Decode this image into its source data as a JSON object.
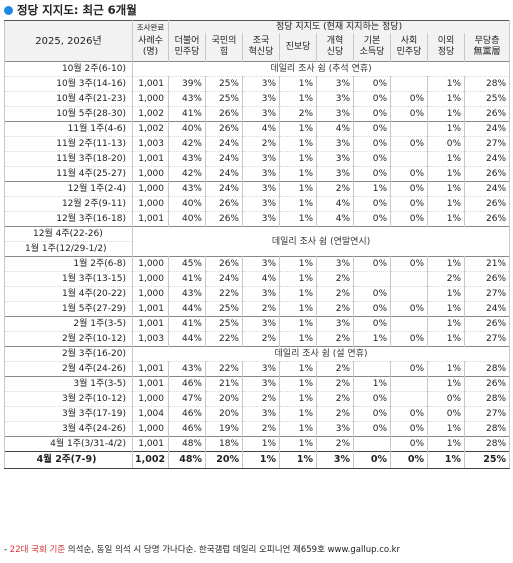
{
  "title": "정당 지지도: 최근 6개월",
  "accent": "#1e88e5",
  "header": {
    "period_label": "2025, 2026년",
    "survey_done": "조사완료",
    "sample_label": "사례수\n(명)",
    "party_group": "정당 지지도 (현재 지지하는 정당)",
    "parties": [
      "더불어\n민주당",
      "국민의\n힘",
      "조국\n혁신당",
      "진보당",
      "개혁\n신당",
      "기본\n소득당",
      "사회\n민주당",
      "이외\n정당",
      "무당층\n無黨層"
    ]
  },
  "rows": [
    {
      "kind": "note",
      "label": "10월 2주(6-10)",
      "note": "데일리 조사 쉼 (추석 연휴)"
    },
    {
      "label": "10월 3주(14-16)",
      "n": "1,001",
      "v": [
        "39%",
        "25%",
        "3%",
        "1%",
        "3%",
        "0%",
        "",
        "1%",
        "28%"
      ]
    },
    {
      "label": "10월 4주(21-23)",
      "n": "1,000",
      "v": [
        "43%",
        "25%",
        "3%",
        "1%",
        "3%",
        "0%",
        "0%",
        "1%",
        "25%"
      ]
    },
    {
      "label": "10월 5주(28-30)",
      "n": "1,002",
      "v": [
        "41%",
        "26%",
        "3%",
        "2%",
        "3%",
        "0%",
        "0%",
        "1%",
        "26%"
      ]
    },
    {
      "label": "11월 1주(4-6)",
      "n": "1,002",
      "v": [
        "40%",
        "26%",
        "4%",
        "1%",
        "4%",
        "0%",
        "",
        "1%",
        "24%"
      ],
      "sep": true
    },
    {
      "label": "11월 2주(11-13)",
      "n": "1,003",
      "v": [
        "42%",
        "24%",
        "2%",
        "1%",
        "3%",
        "0%",
        "0%",
        "0%",
        "27%"
      ]
    },
    {
      "label": "11월 3주(18-20)",
      "n": "1,001",
      "v": [
        "43%",
        "24%",
        "3%",
        "1%",
        "3%",
        "0%",
        "",
        "1%",
        "24%"
      ]
    },
    {
      "label": "11월 4주(25-27)",
      "n": "1,000",
      "v": [
        "42%",
        "24%",
        "3%",
        "1%",
        "3%",
        "0%",
        "0%",
        "1%",
        "26%"
      ]
    },
    {
      "label": "12월 1주(2-4)",
      "n": "1,000",
      "v": [
        "43%",
        "24%",
        "3%",
        "1%",
        "2%",
        "1%",
        "0%",
        "1%",
        "24%"
      ],
      "sep": true
    },
    {
      "label": "12월 2주(9-11)",
      "n": "1,000",
      "v": [
        "40%",
        "26%",
        "3%",
        "1%",
        "4%",
        "0%",
        "0%",
        "1%",
        "26%"
      ]
    },
    {
      "label": "12월 3주(16-18)",
      "n": "1,001",
      "v": [
        "40%",
        "26%",
        "3%",
        "1%",
        "4%",
        "0%",
        "0%",
        "1%",
        "26%"
      ]
    },
    {
      "kind": "note2",
      "label": "12월 4주(22-26)",
      "label2": "1월 1주(12/29-1/2)",
      "note": "데일리 조사 쉼 (연말연시)"
    },
    {
      "label": "1월 2주(6-8)",
      "n": "1,000",
      "v": [
        "45%",
        "26%",
        "3%",
        "1%",
        "3%",
        "0%",
        "0%",
        "1%",
        "21%"
      ],
      "sep": true
    },
    {
      "label": "1월 3주(13-15)",
      "n": "1,000",
      "v": [
        "41%",
        "24%",
        "4%",
        "1%",
        "2%",
        "",
        "",
        "2%",
        "26%"
      ]
    },
    {
      "label": "1월 4주(20-22)",
      "n": "1,000",
      "v": [
        "43%",
        "22%",
        "3%",
        "1%",
        "2%",
        "0%",
        "",
        "1%",
        "27%"
      ]
    },
    {
      "label": "1월 5주(27-29)",
      "n": "1,001",
      "v": [
        "44%",
        "25%",
        "2%",
        "1%",
        "2%",
        "0%",
        "0%",
        "1%",
        "24%"
      ]
    },
    {
      "label": "2월 1주(3-5)",
      "n": "1,001",
      "v": [
        "41%",
        "25%",
        "3%",
        "1%",
        "3%",
        "0%",
        "",
        "1%",
        "26%"
      ],
      "sep": true
    },
    {
      "label": "2월 2주(10-12)",
      "n": "1,003",
      "v": [
        "44%",
        "22%",
        "2%",
        "1%",
        "2%",
        "1%",
        "0%",
        "1%",
        "27%"
      ]
    },
    {
      "kind": "note",
      "label": "2월 3주(16-20)",
      "note": "데일리 조사 쉼 (설 연휴)"
    },
    {
      "label": "2월 4주(24-26)",
      "n": "1,001",
      "v": [
        "43%",
        "22%",
        "3%",
        "1%",
        "2%",
        "",
        "0%",
        "1%",
        "28%"
      ]
    },
    {
      "label": "3월 1주(3-5)",
      "n": "1,001",
      "v": [
        "46%",
        "21%",
        "3%",
        "1%",
        "2%",
        "1%",
        "",
        "1%",
        "26%"
      ],
      "sep": true
    },
    {
      "label": "3월 2주(10-12)",
      "n": "1,000",
      "v": [
        "47%",
        "20%",
        "2%",
        "1%",
        "2%",
        "0%",
        "",
        "0%",
        "28%"
      ]
    },
    {
      "label": "3월 3주(17-19)",
      "n": "1,004",
      "v": [
        "46%",
        "20%",
        "3%",
        "1%",
        "2%",
        "0%",
        "0%",
        "0%",
        "27%"
      ]
    },
    {
      "label": "3월 4주(24-26)",
      "n": "1,000",
      "v": [
        "46%",
        "19%",
        "2%",
        "1%",
        "3%",
        "0%",
        "0%",
        "1%",
        "28%"
      ]
    },
    {
      "label": "4월 1주(3/31-4/2)",
      "n": "1,001",
      "v": [
        "48%",
        "18%",
        "1%",
        "1%",
        "2%",
        "",
        "0%",
        "1%",
        "28%"
      ],
      "sep": true
    }
  ],
  "latest": {
    "label": "4월 2주(7-9)",
    "n": "1,002",
    "v": [
      "48%",
      "20%",
      "1%",
      "1%",
      "3%",
      "0%",
      "0%",
      "1%",
      "25%"
    ]
  },
  "footer": {
    "prefix": "- ",
    "red": "22대 국회 기준",
    "rest": " 의석순, 동일 의석 시 당명 가나다순. 한국갤럽 데일리 오피니언 제659호 www.gallup.co.kr"
  }
}
